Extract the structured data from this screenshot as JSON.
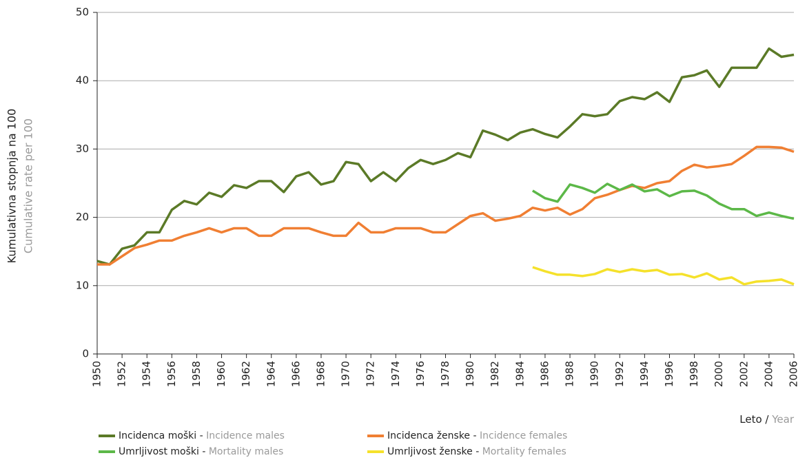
{
  "chart_data": {
    "type": "line",
    "ylabel": [
      "Kumulativna stopnja na 100",
      "Cumulative rate per 100"
    ],
    "xlabel": [
      "Leto",
      " / ",
      "Year"
    ],
    "x": [
      1950,
      1951,
      1952,
      1953,
      1954,
      1955,
      1956,
      1957,
      1958,
      1959,
      1960,
      1961,
      1962,
      1963,
      1964,
      1965,
      1966,
      1967,
      1968,
      1969,
      1970,
      1971,
      1972,
      1973,
      1974,
      1975,
      1976,
      1977,
      1978,
      1979,
      1980,
      1981,
      1982,
      1983,
      1984,
      1985,
      1986,
      1987,
      1988,
      1989,
      1990,
      1991,
      1992,
      1993,
      1994,
      1995,
      1996,
      1997,
      1998,
      1999,
      2000,
      2001,
      2002,
      2003,
      2004,
      2005,
      2006
    ],
    "series": [
      {
        "name": [
          "Incidenca moški",
          " - ",
          "Incidence males"
        ],
        "color": "#5b7a27",
        "values": [
          13.6,
          13.1,
          15.4,
          15.9,
          17.8,
          17.8,
          21.1,
          22.4,
          21.9,
          23.6,
          23.0,
          24.7,
          24.3,
          25.3,
          25.3,
          23.7,
          26.0,
          26.6,
          24.8,
          25.3,
          28.1,
          27.8,
          25.3,
          26.6,
          25.3,
          27.2,
          28.4,
          27.8,
          28.4,
          29.4,
          28.8,
          32.7,
          32.1,
          31.3,
          32.4,
          32.9,
          32.2,
          31.7,
          33.3,
          35.1,
          34.8,
          35.1,
          37.0,
          37.6,
          37.3,
          38.3,
          36.9,
          40.5,
          40.8,
          41.5,
          39.1,
          41.9,
          41.9,
          41.9,
          44.7,
          43.5,
          43.8
        ]
      },
      {
        "name": [
          "Incidenca ženske",
          " - ",
          "Incidence females"
        ],
        "color": "#f07f33",
        "values": [
          13.1,
          13.1,
          14.3,
          15.5,
          16.0,
          16.6,
          16.6,
          17.3,
          17.8,
          18.4,
          17.8,
          18.4,
          18.4,
          17.3,
          17.3,
          18.4,
          18.4,
          18.4,
          17.8,
          17.3,
          17.3,
          19.2,
          17.8,
          17.8,
          18.4,
          18.4,
          18.4,
          17.8,
          17.8,
          19.0,
          20.2,
          20.6,
          19.5,
          19.8,
          20.2,
          21.4,
          21.0,
          21.4,
          20.4,
          21.2,
          22.8,
          23.3,
          24.0,
          24.6,
          24.3,
          25.0,
          25.3,
          26.8,
          27.7,
          27.3,
          27.5,
          27.8,
          29.0,
          30.3,
          30.3,
          30.2,
          29.6
        ]
      },
      {
        "name": [
          "Umrljivost moški",
          " - ",
          "Mortality males"
        ],
        "color": "#5cb848",
        "values": [
          null,
          null,
          null,
          null,
          null,
          null,
          null,
          null,
          null,
          null,
          null,
          null,
          null,
          null,
          null,
          null,
          null,
          null,
          null,
          null,
          null,
          null,
          null,
          null,
          null,
          null,
          null,
          null,
          null,
          null,
          null,
          null,
          null,
          null,
          null,
          23.9,
          22.8,
          22.3,
          24.8,
          24.3,
          23.6,
          24.9,
          24.0,
          24.8,
          23.8,
          24.1,
          23.1,
          23.8,
          23.9,
          23.2,
          22.0,
          21.2,
          21.2,
          20.2,
          20.7,
          20.2,
          19.8
        ]
      },
      {
        "name": [
          "Umrljivost ženske",
          " - ",
          "Mortality females"
        ],
        "color": "#f5e12b",
        "values": [
          null,
          null,
          null,
          null,
          null,
          null,
          null,
          null,
          null,
          null,
          null,
          null,
          null,
          null,
          null,
          null,
          null,
          null,
          null,
          null,
          null,
          null,
          null,
          null,
          null,
          null,
          null,
          null,
          null,
          null,
          null,
          null,
          null,
          null,
          null,
          12.7,
          12.1,
          11.6,
          11.6,
          11.4,
          11.7,
          12.4,
          12.0,
          12.4,
          12.1,
          12.3,
          11.6,
          11.7,
          11.2,
          11.8,
          10.9,
          11.2,
          10.2,
          10.6,
          10.7,
          10.9,
          10.2
        ]
      }
    ],
    "xlim": [
      1950,
      2006
    ],
    "xticks": [
      1950,
      1952,
      1954,
      1956,
      1958,
      1960,
      1962,
      1964,
      1966,
      1968,
      1970,
      1972,
      1974,
      1976,
      1978,
      1980,
      1982,
      1984,
      1986,
      1988,
      1990,
      1992,
      1994,
      1996,
      1998,
      2000,
      2002,
      2004,
      2006
    ],
    "ylim": [
      0,
      50
    ],
    "yticks": [
      0,
      10,
      20,
      30,
      40,
      50
    ],
    "grid": true
  }
}
